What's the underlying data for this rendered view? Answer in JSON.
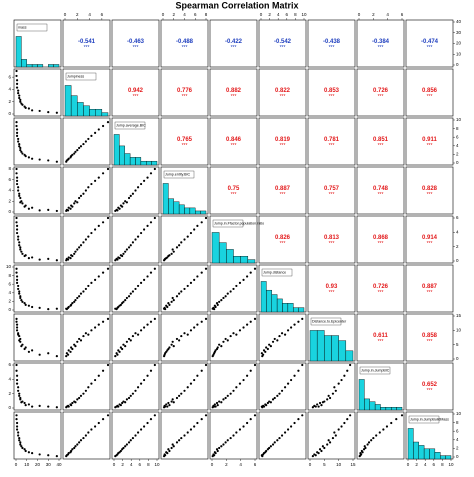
{
  "chart_data": {
    "type": "pairs",
    "title": "Spearman Correlation Matrix",
    "positive_color": "#e31a1c",
    "negative_color": "#1f3fbf",
    "hist_color": "#19d3df",
    "point_color": "#000000",
    "variables": [
      {
        "name": "mass",
        "lim": [
          0,
          40
        ],
        "ticks": [
          0,
          10,
          20,
          30,
          40
        ],
        "hist": {
          "bins": [
            0,
            5,
            10,
            15,
            20,
            25,
            30,
            35,
            40
          ],
          "counts": [
            12,
            3,
            1,
            1,
            1,
            0,
            1,
            1
          ]
        }
      },
      {
        "name": "Jumpiness",
        "lim": [
          0,
          7
        ],
        "ticks": [
          0,
          2,
          4,
          6
        ],
        "hist": {
          "bins": [
            0,
            1,
            2,
            3,
            4,
            5,
            6,
            7
          ],
          "counts": [
            9,
            6,
            4,
            3,
            2,
            2,
            1
          ]
        }
      },
      {
        "name": "Jump.average.BIC",
        "lim": [
          0,
          10
        ],
        "ticks": [
          0,
          2,
          4,
          6,
          8,
          10
        ],
        "hist": {
          "bins": [
            0,
            1.25,
            2.5,
            3.75,
            5,
            6.25,
            7.5,
            8.75,
            10
          ],
          "counts": [
            8,
            5,
            3,
            2,
            2,
            1,
            1,
            1
          ]
        }
      },
      {
        "name": "Jump.entity.BIC",
        "lim": [
          0,
          8
        ],
        "ticks": [
          0,
          2,
          4,
          6,
          8
        ],
        "hist": {
          "bins": [
            0,
            1,
            2,
            3,
            4,
            5,
            6,
            7,
            8
          ],
          "counts": [
            10,
            5,
            4,
            3,
            2,
            2,
            1,
            1
          ]
        }
      },
      {
        "name": "Jump.in.Ffactor.population.ratio",
        "lim": [
          0,
          6
        ],
        "ticks": [
          0,
          2,
          4,
          6
        ],
        "hist": {
          "bins": [
            0,
            1,
            2,
            3,
            4,
            5,
            6
          ],
          "counts": [
            9,
            6,
            4,
            2,
            2,
            1
          ]
        }
      },
      {
        "name": "Jump.distance",
        "lim": [
          0,
          10
        ],
        "ticks": [
          0,
          2,
          4,
          6,
          8,
          10
        ],
        "hist": {
          "bins": [
            0,
            1.25,
            2.5,
            3.75,
            5,
            6.25,
            7.5,
            8.75,
            10
          ],
          "counts": [
            7,
            5,
            4,
            3,
            2,
            2,
            1,
            1
          ]
        }
      },
      {
        "name": "Distance.to.Epicenter",
        "lim": [
          0,
          15
        ],
        "ticks": [
          0,
          5,
          10,
          15
        ],
        "hist": {
          "bins": [
            0,
            2.5,
            5,
            7.5,
            10,
            12.5,
            15
          ],
          "counts": [
            6,
            6,
            5,
            5,
            4,
            2
          ]
        }
      },
      {
        "name": "Jump.in.JumpBIC",
        "lim": [
          0,
          6
        ],
        "ticks": [
          0,
          2,
          4,
          6
        ],
        "hist": {
          "bins": [
            0,
            0.75,
            1.5,
            2.25,
            3,
            3.75,
            4.5,
            5.25,
            6
          ],
          "counts": [
            11,
            4,
            3,
            2,
            1,
            1,
            1,
            1
          ]
        }
      },
      {
        "name": "Jump.in.JumpBuildMass",
        "lim": [
          0,
          10
        ],
        "ticks": [
          0,
          2,
          4,
          6,
          8,
          10
        ],
        "hist": {
          "bins": [
            0,
            1.25,
            2.5,
            3.75,
            5,
            6.25,
            7.5,
            8.75,
            10
          ],
          "counts": [
            9,
            5,
            4,
            3,
            3,
            2,
            1,
            1
          ]
        }
      }
    ],
    "correlations": [
      [
        null,
        -0.541,
        -0.463,
        -0.488,
        -0.422,
        -0.542,
        -0.438,
        -0.384,
        -0.474
      ],
      [
        null,
        null,
        0.942,
        0.776,
        0.882,
        0.822,
        0.853,
        0.726,
        0.856
      ],
      [
        null,
        null,
        null,
        0.765,
        0.846,
        0.819,
        0.781,
        0.851,
        0.911
      ],
      [
        null,
        null,
        null,
        null,
        0.75,
        0.887,
        0.757,
        0.748,
        0.828
      ],
      [
        null,
        null,
        null,
        null,
        null,
        0.826,
        0.813,
        0.868,
        0.914
      ],
      [
        null,
        null,
        null,
        null,
        null,
        null,
        0.93,
        0.726,
        0.887
      ],
      [
        null,
        null,
        null,
        null,
        null,
        null,
        null,
        0.611,
        0.858
      ],
      [
        null,
        null,
        null,
        null,
        null,
        null,
        null,
        null,
        0.652
      ],
      [
        null,
        null,
        null,
        null,
        null,
        null,
        null,
        null,
        null
      ]
    ],
    "significance": [
      [
        null,
        "***",
        "***",
        "***",
        "***",
        "***",
        "***",
        "***",
        "***"
      ],
      [
        null,
        null,
        "***",
        "***",
        "***",
        "***",
        "***",
        "***",
        "***"
      ],
      [
        null,
        null,
        null,
        "***",
        "***",
        "***",
        "***",
        "***",
        "***"
      ],
      [
        null,
        null,
        null,
        null,
        "***",
        "***",
        "***",
        "***",
        "***"
      ],
      [
        null,
        null,
        null,
        null,
        null,
        "***",
        "***",
        "***",
        "***"
      ],
      [
        null,
        null,
        null,
        null,
        null,
        null,
        "***",
        "***",
        "***"
      ],
      [
        null,
        null,
        null,
        null,
        null,
        null,
        null,
        "***",
        "***"
      ],
      [
        null,
        null,
        null,
        null,
        null,
        null,
        null,
        null,
        "***"
      ],
      [
        null,
        null,
        null,
        null,
        null,
        null,
        null,
        null,
        null
      ]
    ],
    "observations": [
      [
        38,
        0.2,
        0.3,
        0.2,
        0.1,
        0.3,
        1,
        0.1,
        0.2
      ],
      [
        30,
        0.3,
        0.6,
        0.4,
        0.3,
        0.2,
        2,
        0.2,
        0.4
      ],
      [
        22,
        0.5,
        0.8,
        0.3,
        0.2,
        0.5,
        1.5,
        0.3,
        0.6
      ],
      [
        15,
        0.6,
        1.0,
        0.8,
        0.5,
        0.7,
        3,
        0.2,
        0.9
      ],
      [
        12,
        0.9,
        1.3,
        0.6,
        0.4,
        1.0,
        2.5,
        0.5,
        1.1
      ],
      [
        9,
        1.0,
        1.6,
        1.2,
        0.8,
        1.2,
        4,
        0.4,
        1.4
      ],
      [
        8,
        1.2,
        1.9,
        1.0,
        0.7,
        1.6,
        3.5,
        0.7,
        1.8
      ],
      [
        6,
        1.5,
        2.2,
        1.6,
        1.0,
        1.9,
        5,
        0.9,
        2.1
      ],
      [
        5,
        1.7,
        2.6,
        2.0,
        1.3,
        2.3,
        4.5,
        0.8,
        2.5
      ],
      [
        4,
        2.0,
        3.0,
        1.8,
        1.6,
        2.8,
        6,
        1.2,
        2.9
      ],
      [
        4,
        2.3,
        3.5,
        2.6,
        1.9,
        3.2,
        7,
        1.4,
        3.4
      ],
      [
        3,
        2.6,
        3.9,
        3.0,
        2.2,
        3.8,
        6.5,
        1.7,
        3.9
      ],
      [
        3,
        3.0,
        4.4,
        3.4,
        2.6,
        4.3,
        8,
        2.0,
        4.4
      ],
      [
        2,
        3.4,
        5.0,
        4.0,
        3.0,
        4.9,
        9,
        2.4,
        5.0
      ],
      [
        2,
        3.8,
        5.6,
        4.6,
        3.4,
        5.6,
        8.5,
        2.9,
        5.7
      ],
      [
        1,
        4.3,
        6.3,
        5.2,
        3.9,
        6.3,
        10,
        3.4,
        6.4
      ],
      [
        1,
        4.9,
        7.0,
        5.8,
        4.4,
        7.0,
        11,
        3.9,
        7.1
      ],
      [
        1,
        5.5,
        7.8,
        6.4,
        4.9,
        7.8,
        12,
        4.5,
        7.9
      ],
      [
        0.5,
        6.2,
        8.6,
        7.2,
        5.4,
        8.7,
        13,
        5.2,
        8.8
      ],
      [
        0.5,
        7.0,
        9.5,
        8.0,
        6.0,
        9.6,
        14,
        6.0,
        9.7
      ]
    ]
  }
}
